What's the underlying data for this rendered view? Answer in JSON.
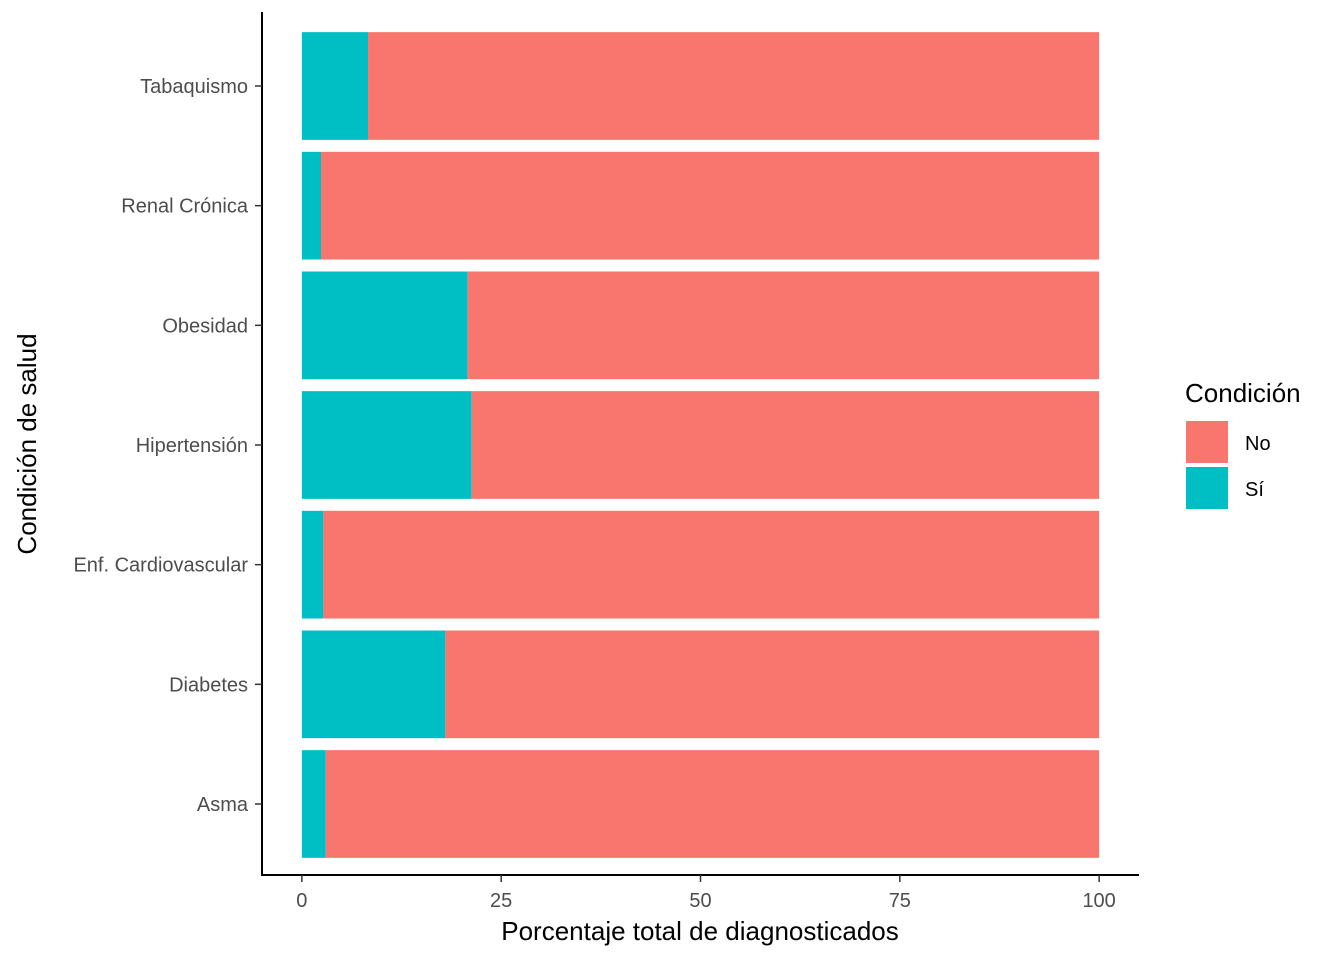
{
  "chart_data": {
    "type": "bar",
    "orientation": "horizontal",
    "stacked": true,
    "categories": [
      "Asma",
      "Diabetes",
      "Enf. Cardiovascular",
      "Hipertensión",
      "Obesidad",
      "Renal Crónica",
      "Tabaquismo"
    ],
    "series": [
      {
        "name": "Sí",
        "color": "#00BFC4",
        "values": [
          3.0,
          18.0,
          2.7,
          21.3,
          20.8,
          2.4,
          8.3
        ]
      },
      {
        "name": "No",
        "color": "#F8766D",
        "values": [
          97.0,
          82.0,
          97.3,
          78.7,
          79.2,
          97.6,
          91.7
        ]
      }
    ],
    "xlabel": "Porcentaje total de diagnosticados",
    "ylabel": "Condición de salud",
    "xlim": [
      -5,
      105
    ],
    "xticks": [
      0,
      25,
      50,
      75,
      100
    ],
    "grid": false,
    "legend": {
      "title": "Condición",
      "position": "right",
      "items": [
        {
          "label": "No",
          "color": "#F8766D"
        },
        {
          "label": "Sí",
          "color": "#00BFC4"
        }
      ]
    }
  }
}
